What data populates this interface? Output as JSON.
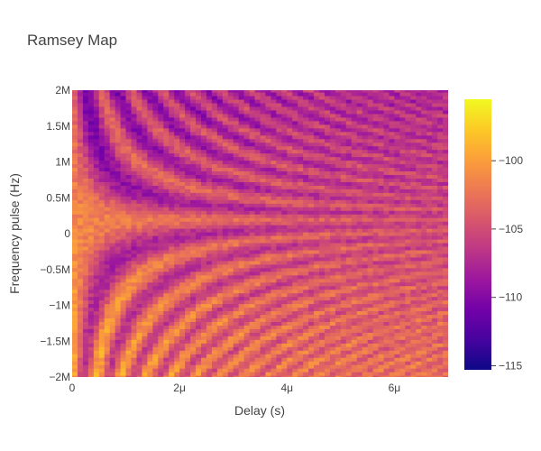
{
  "chart_data": {
    "type": "heatmap",
    "title": "Ramsey Map",
    "xlabel": "Delay (s)",
    "ylabel": "Frequency pulse (Hz)",
    "x_range": [
      0,
      7e-06
    ],
    "y_range": [
      -2000000,
      2000000
    ],
    "x_ticks": [
      {
        "value": 0,
        "label": "0"
      },
      {
        "value": 2e-06,
        "label": "2μ"
      },
      {
        "value": 4e-06,
        "label": "4μ"
      },
      {
        "value": 6e-06,
        "label": "6μ"
      }
    ],
    "y_ticks": [
      {
        "value": 2000000,
        "label": "2M"
      },
      {
        "value": 1500000,
        "label": "1.5M"
      },
      {
        "value": 1000000,
        "label": "1M"
      },
      {
        "value": 500000,
        "label": "0.5M"
      },
      {
        "value": 0,
        "label": "0"
      },
      {
        "value": -500000,
        "label": "−0.5M"
      },
      {
        "value": -1000000,
        "label": "−1M"
      },
      {
        "value": -1500000,
        "label": "−1.5M"
      },
      {
        "value": -2000000,
        "label": "−2M"
      }
    ],
    "grid": {
      "nx": 70,
      "ny": 81
    },
    "z_range": [
      -115.3,
      -95.5
    ],
    "colorscale": "plasma",
    "colorbar": {
      "ticks": [
        {
          "value": -100,
          "label": "−100"
        },
        {
          "value": -105,
          "label": "−105"
        },
        {
          "value": -110,
          "label": "−110"
        },
        {
          "value": -115,
          "label": "−115"
        }
      ]
    },
    "grid_lines": false
  }
}
